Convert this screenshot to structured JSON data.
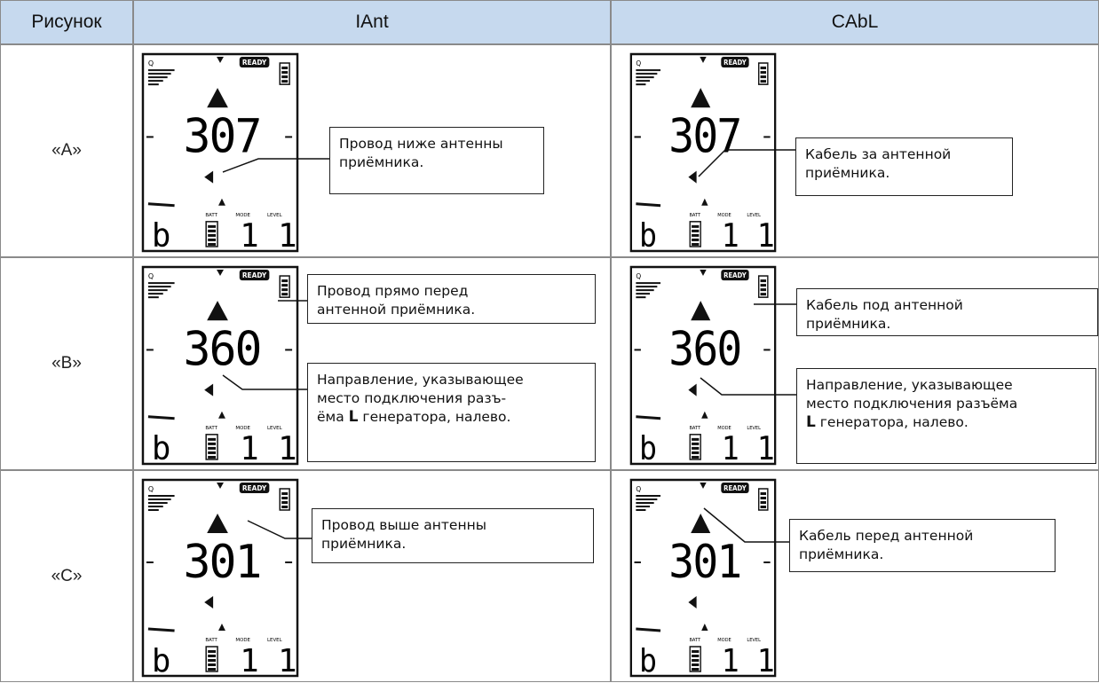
{
  "table": {
    "header": [
      "Рисунок",
      "IAnt",
      "CAbL"
    ],
    "lcd": {
      "q": "Q",
      "ready": "READY",
      "batt": "BATT",
      "mode": "MODE",
      "level": "LEVEL",
      "mode_char": "b",
      "level_digits": "1 1"
    },
    "rows": [
      {
        "label": "«A»",
        "cells": [
          {
            "display": "307",
            "callouts": [
              [
                "Провод ниже антенны",
                "приёмника."
              ]
            ]
          },
          {
            "display": "307",
            "callouts": [
              [
                "Кабель за антенной",
                "приёмника."
              ]
            ]
          }
        ]
      },
      {
        "label": "«B»",
        "cells": [
          {
            "display": "360",
            "callouts": [
              [
                "Провод прямо перед",
                "антенной приёмника."
              ],
              [
                "Направление, указывающее",
                "место подключения разъ-",
                [
                  "ёма ",
                  "L",
                  " генератора, налево."
                ]
              ]
            ]
          },
          {
            "display": "360",
            "callouts": [
              [
                "Кабель под антенной",
                "приёмника."
              ],
              [
                "Направление, указывающее",
                "место подключения разъёма",
                [
                  "L",
                  " генератора, налево."
                ]
              ]
            ]
          }
        ]
      },
      {
        "label": "«C»",
        "cells": [
          {
            "display": "301",
            "callouts": [
              [
                "Провод выше антенны",
                "приёмника."
              ]
            ]
          },
          {
            "display": "301",
            "callouts": [
              [
                "Кабель перед антенной",
                "приёмника."
              ]
            ]
          }
        ]
      }
    ]
  }
}
